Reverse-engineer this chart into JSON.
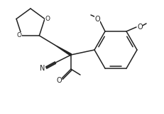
{
  "bg_color": "#ffffff",
  "line_color": "#222222",
  "line_width": 1.1,
  "figsize": [
    2.32,
    1.6
  ],
  "dpi": 100,
  "xlim": [
    0,
    232
  ],
  "ylim": [
    0,
    160
  ]
}
